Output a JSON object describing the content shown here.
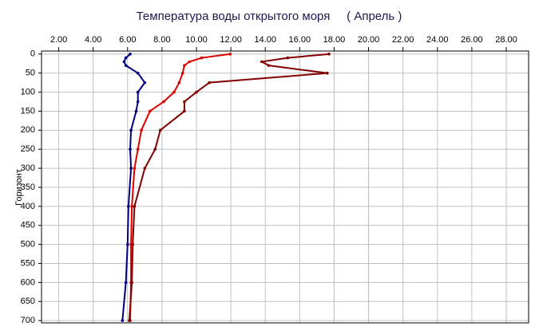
{
  "chart_data": {
    "type": "line",
    "title": "Температура воды открытого моря     ( Апрель )",
    "y_label": "Горизонт",
    "depths": [
      0,
      10,
      20,
      30,
      50,
      75,
      100,
      125,
      150,
      200,
      250,
      300,
      400,
      500,
      600,
      700
    ],
    "series": [
      {
        "color": "#000080",
        "values": [
          6.15,
          5.9,
          5.8,
          5.9,
          6.6,
          7.0,
          6.6,
          6.6,
          6.5,
          6.2,
          6.15,
          6.2,
          6.05,
          6.0,
          5.9,
          5.7
        ]
      },
      {
        "color": "#e00000",
        "values": [
          11.96,
          10.3,
          9.6,
          9.3,
          9.2,
          9.0,
          8.7,
          8.1,
          7.3,
          6.8,
          6.6,
          6.4,
          6.25,
          6.2,
          6.2,
          6.15
        ]
      },
      {
        "color": "#800000",
        "values": [
          17.7,
          15.3,
          13.8,
          14.2,
          17.6,
          10.75,
          10.0,
          9.3,
          9.3,
          7.9,
          7.6,
          7.0,
          6.4,
          6.3,
          6.25,
          6.1
        ]
      }
    ],
    "xlim": [
      1,
      29.3
    ],
    "xticks": [
      {
        "value": 2,
        "label": "2.00"
      },
      {
        "value": 4,
        "label": "4.00"
      },
      {
        "value": 6,
        "label": "6.00"
      },
      {
        "value": 8,
        "label": "8.00"
      },
      {
        "value": 10,
        "label": "10.00"
      },
      {
        "value": 12,
        "label": "12.00"
      },
      {
        "value": 14,
        "label": "14.00"
      },
      {
        "value": 16,
        "label": "16.00"
      },
      {
        "value": 18,
        "label": "18.00"
      },
      {
        "value": 20,
        "label": "20.00"
      },
      {
        "value": 22,
        "label": "22.00"
      },
      {
        "value": 24,
        "label": "24.00"
      },
      {
        "value": 26,
        "label": "26.00"
      },
      {
        "value": 28,
        "label": "28.00"
      }
    ],
    "ylim": [
      -8,
      706
    ],
    "yticks": [
      0,
      50,
      100,
      150,
      200,
      250,
      300,
      350,
      400,
      450,
      500,
      550,
      600,
      650,
      700
    ],
    "y_reversed": true,
    "grid": true
  }
}
